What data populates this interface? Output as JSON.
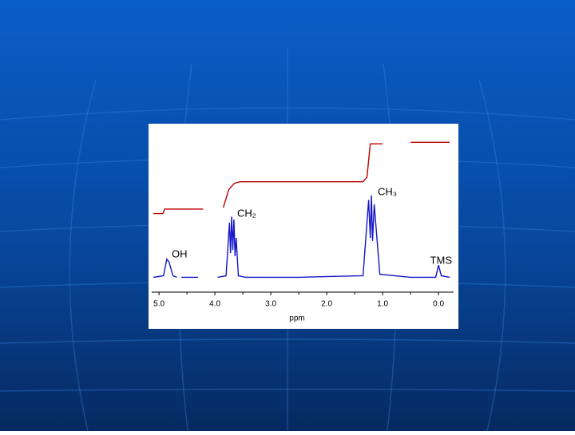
{
  "chart_data": {
    "type": "line",
    "x_label": "ppm",
    "xlim": [
      5.13,
      -0.27
    ],
    "ylim": [
      0,
      100
    ],
    "xticks": [
      {
        "value": 5,
        "label": "5.0"
      },
      {
        "value": 4,
        "label": "4.0"
      },
      {
        "value": 3,
        "label": "3.0"
      },
      {
        "value": 2,
        "label": "2.0"
      },
      {
        "value": 1,
        "label": "1.0"
      },
      {
        "value": 0,
        "label": "0.0"
      }
    ],
    "xminorticks": [
      4.5,
      3.5,
      2.5,
      1.5,
      0.5
    ],
    "annotations": [
      "OH",
      "CH₂",
      "CH₃",
      "TMS"
    ],
    "series": [
      {
        "name": "spectrum",
        "color": "#1414c8",
        "x": [
          5.1,
          4.92,
          4.86,
          4.82,
          4.75,
          4.68,
          4.64,
          4.6,
          4.3,
          4.25,
          3.95,
          3.8,
          3.74,
          3.72,
          3.7,
          3.68,
          3.66,
          3.64,
          3.62,
          3.58,
          3.45,
          2.5,
          1.35,
          1.25,
          1.22,
          1.2,
          1.18,
          1.15,
          1.05,
          0.5,
          0.05,
          0.0,
          -0.05,
          -0.2
        ],
        "values": [
          4,
          5,
          16,
          14,
          5,
          4,
          null,
          4,
          4,
          null,
          4,
          5,
          40,
          20,
          44,
          22,
          42,
          18,
          30,
          5,
          4,
          4,
          5,
          55,
          30,
          58,
          28,
          52,
          6,
          4,
          4,
          12,
          5,
          4
        ]
      },
      {
        "name": "integral",
        "color": "#c00000",
        "x": [
          5.1,
          4.93,
          4.9,
          4.21,
          4.2,
          3.85,
          3.75,
          3.65,
          3.55,
          1.35,
          1.28,
          1.22,
          1.0,
          0.98,
          0.5,
          -0.2
        ],
        "values": [
          46,
          46,
          49,
          49,
          null,
          50,
          62,
          66,
          67,
          67,
          70,
          92,
          92,
          null,
          93,
          93
        ]
      }
    ]
  }
}
